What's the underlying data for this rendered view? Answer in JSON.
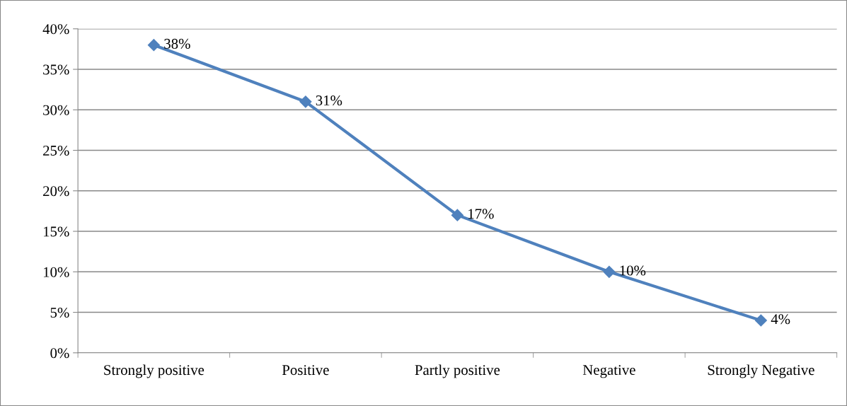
{
  "chart_data": {
    "type": "line",
    "categories": [
      "Strongly positive",
      "Positive",
      "Partly positive",
      "Negative",
      "Strongly Negative"
    ],
    "series": [
      {
        "color": "#4f81bd",
        "values": [
          38,
          31,
          17,
          10,
          4
        ],
        "value_labels": [
          "38%",
          "31%",
          "17%",
          "10%",
          "4%"
        ]
      }
    ],
    "ylim": [
      0,
      40
    ],
    "yticks": [
      {
        "value": 0,
        "label": "0%"
      },
      {
        "value": 5,
        "label": "5%"
      },
      {
        "value": 10,
        "label": "10%"
      },
      {
        "value": 15,
        "label": "15%"
      },
      {
        "value": 20,
        "label": "20%"
      },
      {
        "value": 25,
        "label": "25%"
      },
      {
        "value": 30,
        "label": "30%"
      },
      {
        "value": 35,
        "label": "35%"
      },
      {
        "value": 40,
        "label": "40%"
      }
    ],
    "grid": "y",
    "marker": "diamond",
    "line_style": "solid"
  }
}
